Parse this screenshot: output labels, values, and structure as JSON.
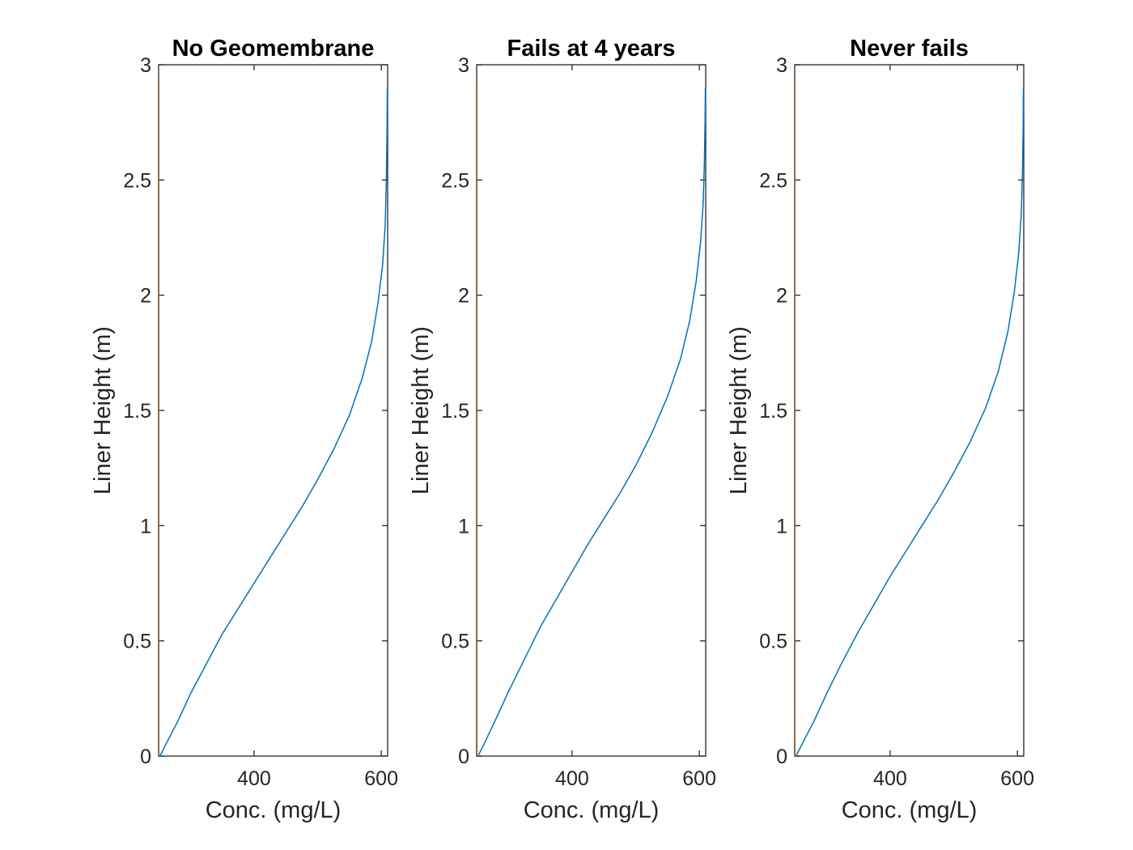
{
  "colors": {
    "series": "#0072BD",
    "left_edge": "#D95319",
    "axes": "#262626",
    "title": "#000000"
  },
  "chart_data": [
    {
      "type": "line",
      "title": "No Geomembrane",
      "xlabel": "Conc. (mg/L)",
      "ylabel": "Liner Height (m)",
      "xlim": [
        250,
        610
      ],
      "ylim": [
        0,
        3
      ],
      "xticks": [
        400,
        600
      ],
      "yticks": [
        0,
        0.5,
        1,
        1.5,
        2,
        2.5,
        3
      ],
      "grid": false,
      "series": [
        {
          "x": [
            252,
            263,
            280,
            300,
            325,
            350,
            375,
            400,
            425,
            450,
            475,
            500,
            525,
            550,
            570,
            585,
            595,
            602,
            606,
            608,
            609,
            609.5
          ],
          "y": [
            0,
            0.06,
            0.15,
            0.27,
            0.4,
            0.53,
            0.64,
            0.75,
            0.86,
            0.97,
            1.08,
            1.2,
            1.33,
            1.48,
            1.64,
            1.8,
            1.97,
            2.13,
            2.3,
            2.5,
            2.7,
            2.9
          ]
        }
      ]
    },
    {
      "type": "line",
      "title": "Fails at 4 years",
      "xlabel": "Conc. (mg/L)",
      "ylabel": "Liner Height (m)",
      "xlim": [
        250,
        610
      ],
      "ylim": [
        0,
        3
      ],
      "xticks": [
        400,
        600
      ],
      "yticks": [
        0,
        0.5,
        1,
        1.5,
        2,
        2.5,
        3
      ],
      "grid": false,
      "series": [
        {
          "x": [
            252,
            263,
            280,
            300,
            325,
            350,
            375,
            400,
            425,
            450,
            475,
            500,
            525,
            550,
            570,
            585,
            595,
            602,
            606,
            608,
            609,
            609.5
          ],
          "y": [
            0,
            0.06,
            0.16,
            0.28,
            0.42,
            0.56,
            0.68,
            0.8,
            0.92,
            1.03,
            1.14,
            1.26,
            1.4,
            1.56,
            1.72,
            1.89,
            2.06,
            2.23,
            2.4,
            2.58,
            2.75,
            2.9
          ]
        }
      ]
    },
    {
      "type": "line",
      "title": "Never fails",
      "xlabel": "Conc. (mg/L)",
      "ylabel": "Liner Height (m)",
      "xlim": [
        250,
        610
      ],
      "ylim": [
        0,
        3
      ],
      "xticks": [
        400,
        600
      ],
      "yticks": [
        0,
        0.5,
        1,
        1.5,
        2,
        2.5,
        3
      ],
      "grid": false,
      "series": [
        {
          "x": [
            252,
            263,
            280,
            300,
            325,
            350,
            375,
            400,
            425,
            450,
            475,
            500,
            525,
            550,
            570,
            585,
            595,
            602,
            606,
            608,
            609,
            609.5
          ],
          "y": [
            0,
            0.06,
            0.15,
            0.27,
            0.41,
            0.54,
            0.66,
            0.78,
            0.89,
            1.0,
            1.11,
            1.23,
            1.36,
            1.51,
            1.67,
            1.84,
            2.01,
            2.18,
            2.35,
            2.53,
            2.71,
            2.9
          ]
        }
      ]
    }
  ]
}
